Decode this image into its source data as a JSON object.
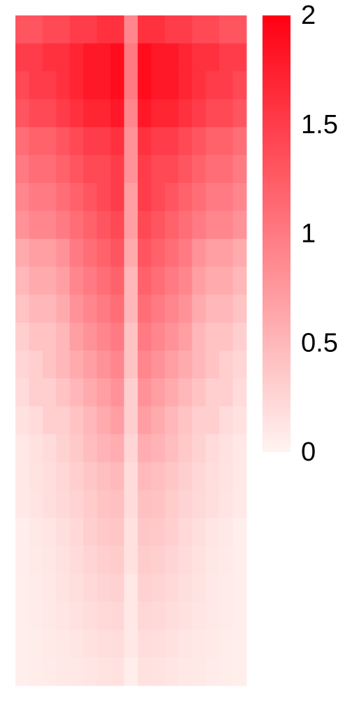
{
  "chart_data": {
    "type": "heatmap",
    "zlim": [
      0,
      2
    ],
    "colorbar_ticks": [
      0,
      0.5,
      1,
      1.5,
      2
    ],
    "colors": [
      "#fff4f1",
      "#ff0012"
    ],
    "values": [
      [
        1.3,
        1.3,
        1.4,
        1.4,
        1.5,
        1.5,
        1.6,
        1.6,
        0.9,
        1.6,
        1.6,
        1.5,
        1.5,
        1.4,
        1.4,
        1.3,
        1.3
      ],
      [
        1.5,
        1.5,
        1.6,
        1.6,
        1.7,
        1.8,
        1.8,
        1.9,
        1.0,
        1.9,
        1.8,
        1.8,
        1.7,
        1.6,
        1.6,
        1.5,
        1.5
      ],
      [
        1.4,
        1.5,
        1.5,
        1.6,
        1.7,
        1.8,
        1.8,
        1.9,
        1.0,
        1.9,
        1.8,
        1.8,
        1.7,
        1.6,
        1.5,
        1.5,
        1.4
      ],
      [
        1.3,
        1.4,
        1.4,
        1.5,
        1.6,
        1.7,
        1.7,
        1.8,
        0.9,
        1.8,
        1.7,
        1.7,
        1.6,
        1.5,
        1.4,
        1.4,
        1.3
      ],
      [
        1.1,
        1.2,
        1.2,
        1.3,
        1.4,
        1.5,
        1.5,
        1.6,
        0.8,
        1.6,
        1.5,
        1.5,
        1.4,
        1.3,
        1.2,
        1.2,
        1.1
      ],
      [
        1.0,
        1.1,
        1.1,
        1.2,
        1.3,
        1.4,
        1.4,
        1.5,
        0.8,
        1.5,
        1.4,
        1.4,
        1.3,
        1.2,
        1.1,
        1.1,
        1.0
      ],
      [
        0.9,
        1.0,
        1.0,
        1.1,
        1.2,
        1.3,
        1.4,
        1.5,
        0.7,
        1.5,
        1.4,
        1.3,
        1.2,
        1.1,
        1.0,
        1.0,
        0.9
      ],
      [
        0.8,
        0.9,
        0.9,
        1.0,
        1.1,
        1.2,
        1.3,
        1.4,
        0.7,
        1.4,
        1.3,
        1.2,
        1.1,
        1.0,
        0.9,
        0.9,
        0.8
      ],
      [
        0.6,
        0.7,
        0.7,
        0.8,
        1.0,
        1.1,
        1.2,
        1.3,
        0.6,
        1.3,
        1.2,
        1.1,
        1.0,
        0.8,
        0.7,
        0.7,
        0.6
      ],
      [
        0.5,
        0.6,
        0.6,
        0.7,
        0.9,
        1.0,
        1.1,
        1.2,
        0.5,
        1.2,
        1.1,
        1.0,
        0.9,
        0.7,
        0.6,
        0.6,
        0.5
      ],
      [
        0.4,
        0.5,
        0.5,
        0.6,
        0.8,
        0.9,
        1.0,
        1.1,
        0.5,
        1.1,
        1.0,
        0.9,
        0.8,
        0.6,
        0.5,
        0.5,
        0.4
      ],
      [
        0.3,
        0.4,
        0.4,
        0.5,
        0.7,
        0.8,
        0.9,
        1.0,
        0.4,
        1.0,
        0.9,
        0.8,
        0.7,
        0.5,
        0.4,
        0.4,
        0.3
      ],
      [
        0.25,
        0.3,
        0.4,
        0.5,
        0.6,
        0.7,
        0.8,
        0.9,
        0.4,
        0.9,
        0.8,
        0.7,
        0.6,
        0.5,
        0.4,
        0.3,
        0.25
      ],
      [
        0.2,
        0.3,
        0.3,
        0.4,
        0.5,
        0.6,
        0.7,
        0.8,
        0.3,
        0.8,
        0.7,
        0.6,
        0.5,
        0.4,
        0.3,
        0.3,
        0.2
      ],
      [
        0.15,
        0.2,
        0.3,
        0.3,
        0.4,
        0.5,
        0.6,
        0.7,
        0.3,
        0.7,
        0.6,
        0.5,
        0.4,
        0.3,
        0.3,
        0.2,
        0.15
      ],
      [
        0.1,
        0.15,
        0.2,
        0.28,
        0.35,
        0.45,
        0.53,
        0.58,
        0.25,
        0.58,
        0.53,
        0.45,
        0.35,
        0.28,
        0.2,
        0.15,
        0.1
      ],
      [
        0.1,
        0.14,
        0.18,
        0.24,
        0.3,
        0.38,
        0.44,
        0.48,
        0.2,
        0.48,
        0.44,
        0.38,
        0.3,
        0.24,
        0.18,
        0.14,
        0.1
      ],
      [
        0.1,
        0.13,
        0.17,
        0.22,
        0.27,
        0.34,
        0.4,
        0.43,
        0.2,
        0.43,
        0.4,
        0.34,
        0.27,
        0.22,
        0.17,
        0.13,
        0.1
      ],
      [
        0.05,
        0.09,
        0.12,
        0.17,
        0.23,
        0.3,
        0.35,
        0.38,
        0.15,
        0.38,
        0.35,
        0.3,
        0.23,
        0.17,
        0.12,
        0.09,
        0.05
      ],
      [
        0.05,
        0.08,
        0.11,
        0.15,
        0.2,
        0.26,
        0.3,
        0.33,
        0.15,
        0.33,
        0.3,
        0.26,
        0.2,
        0.15,
        0.11,
        0.08,
        0.05
      ],
      [
        0.05,
        0.07,
        0.1,
        0.14,
        0.17,
        0.22,
        0.26,
        0.29,
        0.1,
        0.29,
        0.26,
        0.22,
        0.17,
        0.14,
        0.1,
        0.07,
        0.05
      ],
      [
        0.05,
        0.07,
        0.09,
        0.12,
        0.15,
        0.19,
        0.22,
        0.24,
        0.1,
        0.24,
        0.22,
        0.19,
        0.15,
        0.12,
        0.09,
        0.07,
        0.05
      ],
      [
        0.05,
        0.06,
        0.08,
        0.1,
        0.12,
        0.15,
        0.18,
        0.19,
        0.1,
        0.19,
        0.18,
        0.15,
        0.12,
        0.1,
        0.08,
        0.06,
        0.05
      ],
      [
        0.05,
        0.06,
        0.07,
        0.09,
        0.1,
        0.12,
        0.14,
        0.15,
        0.05,
        0.15,
        0.14,
        0.12,
        0.1,
        0.09,
        0.07,
        0.06,
        0.05
      ]
    ]
  }
}
